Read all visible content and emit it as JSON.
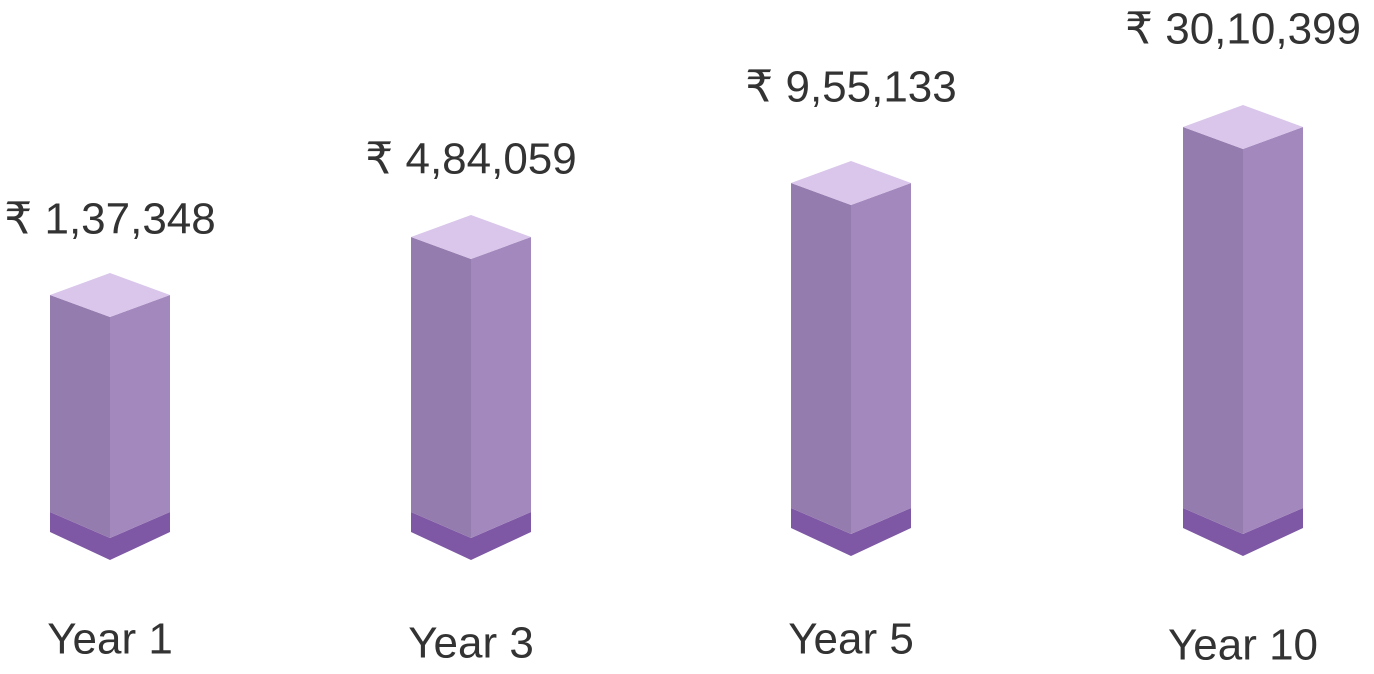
{
  "items": [
    {
      "amount": "₹ 1,37,348",
      "label": "Year 1"
    },
    {
      "amount": "₹ 4,84,059",
      "label": "Year 3"
    },
    {
      "amount": "₹ 9,55,133",
      "label": "Year 5"
    },
    {
      "amount": "₹ 30,10,399",
      "label": "Year 10"
    }
  ]
}
